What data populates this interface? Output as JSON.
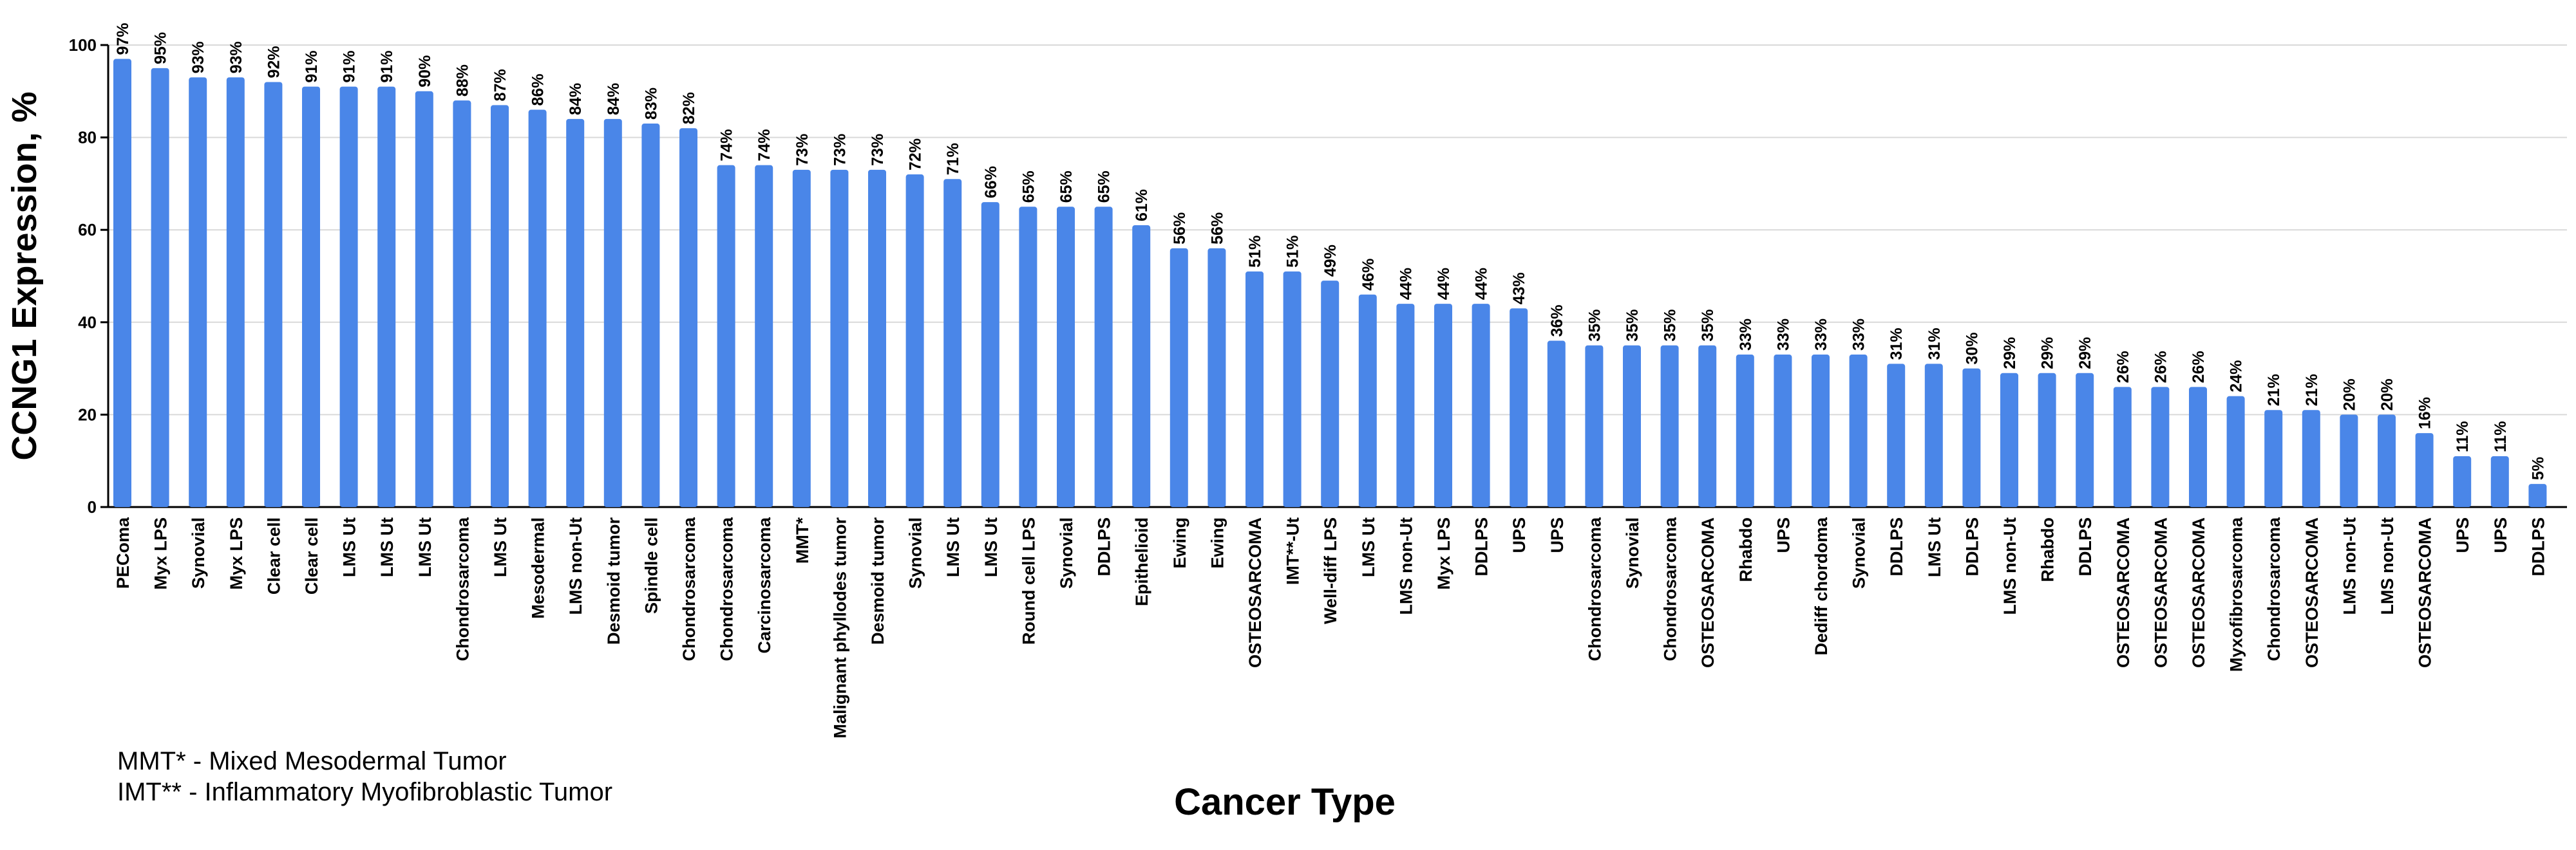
{
  "chart_data": {
    "type": "bar",
    "xlabel": "Cancer Type",
    "ylabel": "CCNG1 Expression, %",
    "ylim": [
      0,
      100
    ],
    "yticks": [
      0,
      20,
      40,
      60,
      80,
      100
    ],
    "grid": true,
    "bar_color": "#4a86e8",
    "categories": [
      "PEComa",
      "Myx LPS",
      "Synovial",
      "Myx LPS",
      "Clear cell",
      "Clear cell",
      "LMS Ut",
      "LMS Ut",
      "LMS Ut",
      "Chondrosarcoma",
      "LMS Ut",
      "Mesodermal",
      "LMS non-Ut",
      "Desmoid tumor",
      "Spindle cell",
      "Chondrosarcoma",
      "Chondrosarcoma",
      "Carcinosarcoma",
      "MMT*",
      "Malignant phyllodes tumor",
      "Desmoid tumor",
      "Synovial",
      "LMS Ut",
      "LMS Ut",
      "Round cell LPS",
      "Synovial",
      "DDLPS",
      "Epithelioid",
      "Ewing",
      "Ewing",
      "OSTEOSARCOMA",
      "IMT**-Ut",
      "Well-diff LPS",
      "LMS Ut",
      "LMS non-Ut",
      "Myx LPS",
      "DDLPS",
      "UPS",
      "UPS",
      "Chondrosarcoma",
      "Synovial",
      "Chondrosarcoma",
      "OSTEOSARCOMA",
      "Rhabdo",
      "UPS",
      "Dediff chordoma",
      "Synovial",
      "DDLPS",
      "LMS Ut",
      "DDLPS",
      "LMS non-Ut",
      "Rhabdo",
      "DDLPS",
      "OSTEOSARCOMA",
      "OSTEOSARCOMA",
      "OSTEOSARCOMA",
      "Myxofibrosarcoma",
      "Chondrosarcoma",
      "OSTEOSARCOMA",
      "LMS non-Ut",
      "LMS non-Ut",
      "OSTEOSARCOMA",
      "UPS",
      "UPS",
      "DDLPS"
    ],
    "values": [
      97,
      95,
      93,
      93,
      92,
      91,
      91,
      91,
      90,
      88,
      87,
      86,
      84,
      84,
      83,
      82,
      74,
      74,
      73,
      73,
      73,
      72,
      71,
      66,
      65,
      65,
      65,
      61,
      56,
      56,
      51,
      51,
      49,
      46,
      44,
      44,
      44,
      43,
      36,
      35,
      35,
      35,
      35,
      33,
      33,
      33,
      33,
      31,
      31,
      30,
      29,
      29,
      29,
      26,
      26,
      26,
      24,
      21,
      21,
      20,
      20,
      16,
      11,
      11,
      5
    ],
    "data_labels": [
      "97%",
      "95%",
      "93%",
      "93%",
      "92%",
      "91%",
      "91%",
      "91%",
      "90%",
      "88%",
      "87%",
      "86%",
      "84%",
      "84%",
      "83%",
      "82%",
      "74%",
      "74%",
      "73%",
      "73%",
      "73%",
      "72%",
      "71%",
      "66%",
      "65%",
      "65%",
      "65%",
      "61%",
      "56%",
      "56%",
      "51%",
      "51%",
      "49%",
      "46%",
      "44%",
      "44%",
      "44%",
      "43%",
      "36%",
      "35%",
      "35%",
      "35%",
      "35%",
      "33%",
      "33%",
      "33%",
      "33%",
      "31%",
      "31%",
      "30%",
      "29%",
      "29%",
      "29%",
      "26%",
      "26%",
      "26%",
      "24%",
      "21%",
      "21%",
      "20%",
      "20%",
      "16%",
      "11%",
      "11%",
      "5%"
    ],
    "annotations": [
      "MMT* - Mixed Mesodermal Tumor",
      "IMT** - Inflammatory Myofibroblastic Tumor"
    ]
  }
}
